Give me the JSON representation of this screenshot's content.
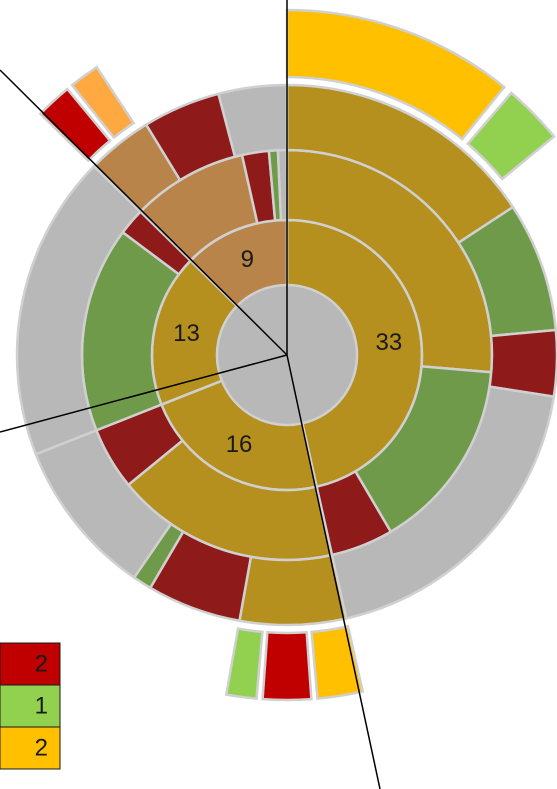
{
  "chart_data": {
    "type": "sunburst",
    "rings": [
      {
        "segments": [
          {
            "value": 33,
            "color": "#b5901e"
          },
          {
            "value": 16,
            "color": "#b5901e"
          },
          {
            "value": 13,
            "color": "#b5901e"
          },
          {
            "value": 9,
            "color": "#b9844a"
          }
        ]
      },
      {
        "segments": [
          {
            "value": 18.7,
            "color": "#b5901e"
          },
          {
            "value": 10.8,
            "color": "#6f9a4a"
          },
          {
            "value": 3.5,
            "color": "#8e1a1a"
          },
          {
            "value": 12.5,
            "color": "#b5901e"
          },
          {
            "value": 3.5,
            "color": "#8e1a1a"
          },
          {
            "value": 11.5,
            "color": "#6f9a4a"
          },
          {
            "value": 1.5,
            "color": "#8e1a1a"
          },
          {
            "value": 6.5,
            "color": "#b9844a"
          },
          {
            "value": 1.5,
            "color": "#8e1a1a"
          },
          {
            "value": 0.5,
            "color": "#6f9a4a"
          },
          {
            "value": 0.5,
            "color": "#b8b8b8"
          }
        ]
      },
      {
        "segments": [
          {
            "value": 11.2,
            "color": "#b5901e"
          },
          {
            "value": 5.5,
            "color": "#6f9a4a"
          },
          {
            "value": 2.8,
            "color": "#8e1a1a"
          },
          {
            "value": 13.5,
            "color": "#b8b8b8"
          },
          {
            "value": 4.5,
            "color": "#b5901e"
          },
          {
            "value": 4,
            "color": "#8e1a1a"
          },
          {
            "value": 0.8,
            "color": "#6f9a4a"
          },
          {
            "value": 6.7,
            "color": "#b8b8b8"
          },
          {
            "value": 13,
            "color": "#b8b8b8"
          },
          {
            "value": 2.8,
            "color": "#b9844a"
          },
          {
            "value": 3.3,
            "color": "#8e1a1a"
          },
          {
            "value": 2.9,
            "color": "#b8b8b8"
          }
        ]
      },
      {
        "segments": [
          {
            "value": 7.7,
            "color": "#ffc000"
          },
          {
            "value": 0.3,
            "color": "none"
          },
          {
            "value": 2,
            "color": "#92d050"
          },
          {
            "value": 23,
            "color": "none"
          },
          {
            "value": 1.5,
            "color": "#ffc000"
          },
          {
            "value": 0.2,
            "color": "none"
          },
          {
            "value": 1.6,
            "color": "#c00000"
          },
          {
            "value": 0.2,
            "color": "none"
          },
          {
            "value": 1,
            "color": "#92d050"
          },
          {
            "value": 11.5,
            "color": "none"
          },
          {
            "value": 13,
            "color": "none"
          },
          {
            "value": 1.2,
            "color": "#c00000"
          },
          {
            "value": 0.2,
            "color": "none"
          },
          {
            "value": 1,
            "color": "#ffa940"
          },
          {
            "value": 6.6,
            "color": "none"
          }
        ]
      }
    ],
    "center_color": "#b8b8b8",
    "legend": [
      {
        "label": "2",
        "color": "#c00000"
      },
      {
        "label": "1",
        "color": "#92d050"
      },
      {
        "label": "2",
        "color": "#ffc000"
      }
    ]
  }
}
